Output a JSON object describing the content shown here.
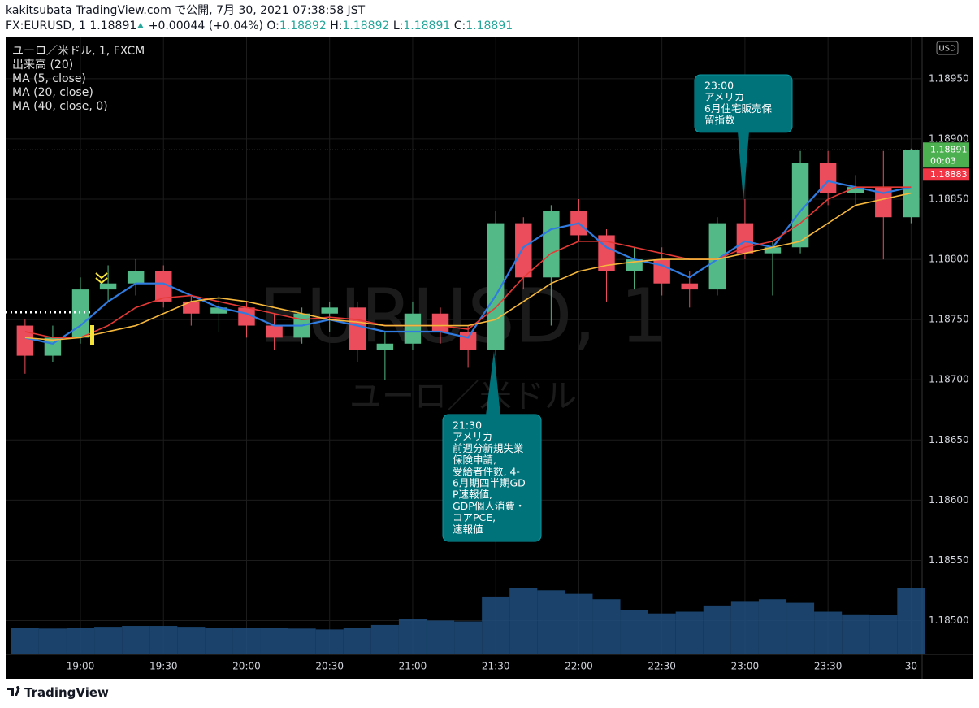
{
  "header": {
    "line1": "kakitsubata TradingView.com で公開, 7月 30, 2021 07:38:58 JST",
    "symbol": "FX:EURUSD, 1",
    "last": "1.18891",
    "change": "+0.00044 (+0.04%)",
    "ohlc": [
      {
        "key": "O:",
        "value": "1.18892"
      },
      {
        "key": "H:",
        "value": "1.18892"
      },
      {
        "key": "L:",
        "value": "1.18891"
      },
      {
        "key": "C:",
        "value": "1.18891"
      }
    ]
  },
  "chart_data": {
    "type": "candlestick",
    "watermark": "EURUSD, 1",
    "watermark_sub": "ユーロ／米ドル",
    "currency": "USD",
    "xlim": [
      -0.7,
      32.4
    ],
    "xticks": [
      {
        "value": 2,
        "label": "19:00"
      },
      {
        "value": 5,
        "label": "19:30"
      },
      {
        "value": 8,
        "label": "20:00"
      },
      {
        "value": 11,
        "label": "20:30"
      },
      {
        "value": 14,
        "label": "21:00"
      },
      {
        "value": 17,
        "label": "21:30"
      },
      {
        "value": 20,
        "label": "22:00"
      },
      {
        "value": 23,
        "label": "22:30"
      },
      {
        "value": 26,
        "label": "23:00"
      },
      {
        "value": 29,
        "label": "23:30"
      },
      {
        "value": 32,
        "label": "30"
      }
    ],
    "ylim": [
      1.18472,
      1.18985
    ],
    "yticks": [
      {
        "value": 1.185,
        "label": "1.18500"
      },
      {
        "value": 1.1855,
        "label": "1.18550"
      },
      {
        "value": 1.186,
        "label": "1.18600"
      },
      {
        "value": 1.1865,
        "label": "1.18650"
      },
      {
        "value": 1.187,
        "label": "1.18700"
      },
      {
        "value": 1.1875,
        "label": "1.18750"
      },
      {
        "value": 1.188,
        "label": "1.18800"
      },
      {
        "value": 1.1885,
        "label": "1.18850"
      },
      {
        "value": 1.189,
        "label": "1.18900"
      },
      {
        "value": 1.1895,
        "label": "1.18950"
      }
    ],
    "grid": true,
    "candles": {
      "name": "ユーロ／米ドル, 1, FXCM",
      "up_color": "#53b987",
      "down_color": "#eb4d5c",
      "open": [
        1.18745,
        1.1872,
        1.18735,
        1.18775,
        1.1878,
        1.1879,
        1.18765,
        1.18755,
        1.1876,
        1.18745,
        1.18735,
        1.18755,
        1.1876,
        1.18725,
        1.1873,
        1.18755,
        1.1874,
        1.18725,
        1.1883,
        1.18785,
        1.1884,
        1.1882,
        1.1879,
        1.188,
        1.1878,
        1.18775,
        1.1883,
        1.18805,
        1.1881,
        1.1888,
        1.18855,
        1.1886,
        1.18835
      ],
      "high": [
        1.1875,
        1.18745,
        1.18785,
        1.18795,
        1.188,
        1.18795,
        1.1877,
        1.1877,
        1.18765,
        1.18755,
        1.1876,
        1.18765,
        1.18765,
        1.1874,
        1.18765,
        1.1876,
        1.18745,
        1.1884,
        1.18835,
        1.18845,
        1.1885,
        1.18825,
        1.1881,
        1.1881,
        1.1879,
        1.18835,
        1.1885,
        1.18815,
        1.1889,
        1.1889,
        1.1887,
        1.1889,
        1.18892
      ],
      "low": [
        1.18705,
        1.18715,
        1.1873,
        1.18765,
        1.1877,
        1.1876,
        1.18745,
        1.1874,
        1.18735,
        1.18725,
        1.1873,
        1.1874,
        1.18715,
        1.187,
        1.18725,
        1.1873,
        1.1871,
        1.1872,
        1.18775,
        1.18745,
        1.18815,
        1.18765,
        1.18775,
        1.1877,
        1.1876,
        1.1877,
        1.188,
        1.1877,
        1.18805,
        1.18845,
        1.18845,
        1.188,
        1.1883
      ],
      "close": [
        1.1872,
        1.18735,
        1.18775,
        1.1878,
        1.1879,
        1.18765,
        1.18755,
        1.1876,
        1.18745,
        1.18735,
        1.18755,
        1.1876,
        1.18725,
        1.1873,
        1.18755,
        1.1874,
        1.18725,
        1.1883,
        1.18785,
        1.1884,
        1.1882,
        1.1879,
        1.188,
        1.1878,
        1.18775,
        1.1883,
        1.18805,
        1.1881,
        1.1888,
        1.18855,
        1.1886,
        1.18835,
        1.18891
      ]
    },
    "volume": {
      "name": "出来高 (20)",
      "color": "#1f4e7d",
      "values": [
        30,
        29,
        30,
        31,
        32,
        32,
        31,
        30,
        30,
        30,
        29,
        28,
        30,
        33,
        40,
        38,
        37,
        65,
        75,
        72,
        68,
        62,
        50,
        46,
        48,
        55,
        60,
        62,
        58,
        48,
        45,
        44,
        75
      ]
    },
    "series": [
      {
        "name": "MA (5, close)",
        "color": "#2f7be0",
        "values": [
          1.18735,
          1.1873,
          1.18745,
          1.18765,
          1.1878,
          1.1878,
          1.1877,
          1.1876,
          1.18755,
          1.18745,
          1.18745,
          1.1875,
          1.18745,
          1.1874,
          1.1874,
          1.1874,
          1.18735,
          1.1877,
          1.1881,
          1.18825,
          1.1883,
          1.1881,
          1.188,
          1.18795,
          1.18785,
          1.188,
          1.18815,
          1.1881,
          1.1884,
          1.18865,
          1.1886,
          1.18855,
          1.1886
        ]
      },
      {
        "name": "MA (20, close)",
        "color": "#e53935",
        "values": [
          1.1874,
          1.18735,
          1.18735,
          1.18745,
          1.1876,
          1.18768,
          1.1877,
          1.18765,
          1.1876,
          1.18755,
          1.1875,
          1.18752,
          1.1875,
          1.18745,
          1.18745,
          1.18745,
          1.18742,
          1.1876,
          1.18785,
          1.18805,
          1.18815,
          1.18815,
          1.1881,
          1.18805,
          1.188,
          1.188,
          1.1881,
          1.18815,
          1.1883,
          1.1885,
          1.1886,
          1.1886,
          1.1886
        ]
      },
      {
        "name": "MA (40, close, 0)",
        "color": "#f6b83c",
        "values": [
          1.18735,
          1.18733,
          1.18735,
          1.1874,
          1.18745,
          1.18755,
          1.18765,
          1.18768,
          1.18765,
          1.1876,
          1.18755,
          1.1875,
          1.18748,
          1.18745,
          1.18745,
          1.18745,
          1.18745,
          1.1875,
          1.18765,
          1.1878,
          1.1879,
          1.18795,
          1.18798,
          1.188,
          1.188,
          1.188,
          1.18805,
          1.1881,
          1.18815,
          1.1883,
          1.18845,
          1.1885,
          1.18855
        ]
      }
    ],
    "last_price": {
      "value": 1.18891,
      "label": "1.18891"
    },
    "countdown": "00:03",
    "prev_price": {
      "value": 1.18883,
      "label": "1.18883"
    },
    "annotations": [
      {
        "lines": [
          "21:30",
          "アメリカ",
          "前週分新規失業",
          "保険申請,",
          "受給者件数, 4-",
          "6月期四半期GD",
          "P速報値,",
          "GDP個人消費・",
          "コアPCE,",
          "速報値"
        ]
      },
      {
        "lines": [
          "23:00",
          "アメリカ",
          "6月住宅販売保",
          "留指数"
        ]
      }
    ]
  }
}
